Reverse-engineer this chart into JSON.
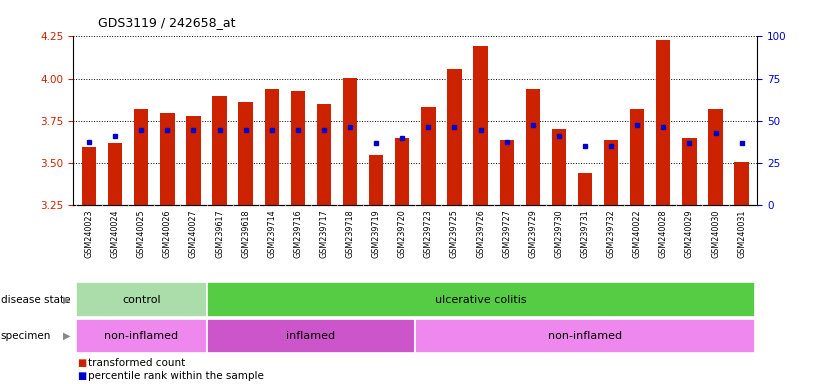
{
  "title": "GDS3119 / 242658_at",
  "samples": [
    "GSM240023",
    "GSM240024",
    "GSM240025",
    "GSM240026",
    "GSM240027",
    "GSM239617",
    "GSM239618",
    "GSM239714",
    "GSM239716",
    "GSM239717",
    "GSM239718",
    "GSM239719",
    "GSM239720",
    "GSM239723",
    "GSM239725",
    "GSM239726",
    "GSM239727",
    "GSM239729",
    "GSM239730",
    "GSM239731",
    "GSM239732",
    "GSM240022",
    "GSM240028",
    "GSM240029",
    "GSM240030",
    "GSM240031"
  ],
  "bar_values": [
    3.595,
    3.62,
    3.82,
    3.8,
    3.78,
    3.9,
    3.86,
    3.94,
    3.93,
    3.85,
    4.005,
    3.55,
    3.65,
    3.83,
    4.055,
    4.195,
    3.635,
    3.94,
    3.7,
    3.44,
    3.635,
    3.82,
    4.23,
    3.65,
    3.82,
    3.505
  ],
  "blue_values": [
    3.628,
    3.66,
    3.697,
    3.697,
    3.697,
    3.697,
    3.697,
    3.697,
    3.697,
    3.697,
    3.715,
    3.62,
    3.648,
    3.715,
    3.715,
    3.697,
    3.628,
    3.728,
    3.66,
    3.6,
    3.6,
    3.728,
    3.715,
    3.62,
    3.678,
    3.62
  ],
  "ymin": 3.25,
  "ymax": 4.25,
  "y2min": 0,
  "y2max": 100,
  "yticks_left": [
    3.25,
    3.5,
    3.75,
    4.0,
    4.25
  ],
  "yticks_right": [
    0,
    25,
    50,
    75,
    100
  ],
  "bar_color": "#cc2200",
  "blue_color": "#0000cc",
  "disease_state_groups": [
    {
      "label": "control",
      "start": 0,
      "end": 5,
      "color": "#aaddaa"
    },
    {
      "label": "ulcerative colitis",
      "start": 5,
      "end": 26,
      "color": "#55cc44"
    }
  ],
  "specimen_groups": [
    {
      "label": "non-inflamed",
      "start": 0,
      "end": 5,
      "color": "#ee88ee"
    },
    {
      "label": "inflamed",
      "start": 5,
      "end": 13,
      "color": "#cc55cc"
    },
    {
      "label": "non-inflamed",
      "start": 13,
      "end": 26,
      "color": "#ee88ee"
    }
  ],
  "legend": [
    {
      "label": "transformed count",
      "color": "#cc2200"
    },
    {
      "label": "percentile rank within the sample",
      "color": "#0000cc"
    }
  ],
  "tick_bg": "#d8d8d8",
  "plot_bg": "#ffffff"
}
